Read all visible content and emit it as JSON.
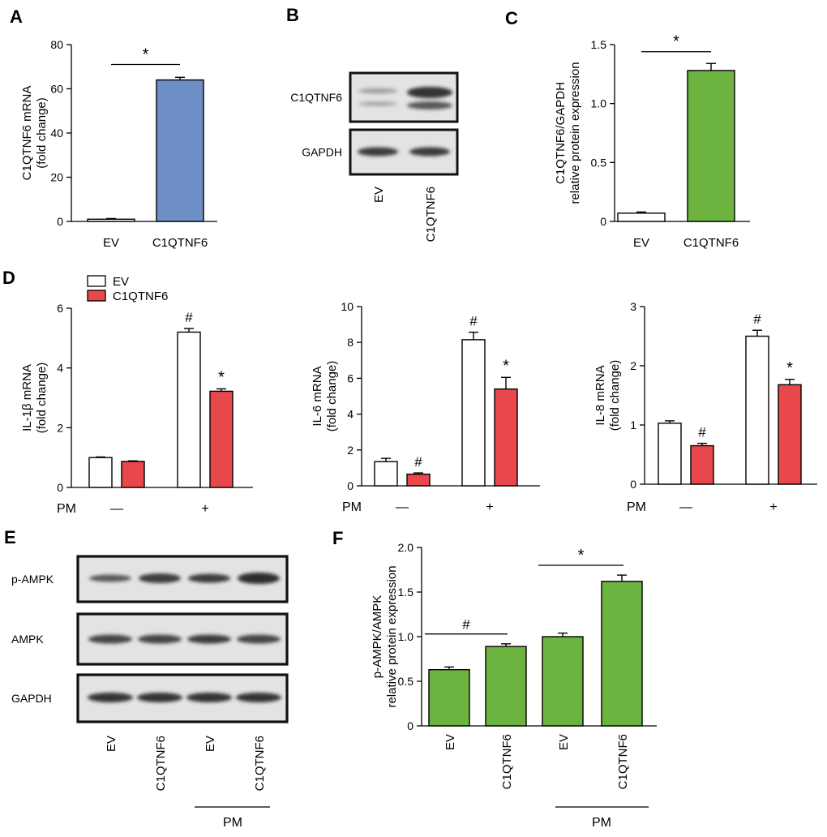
{
  "panels": {
    "A": "A",
    "B": "B",
    "C": "C",
    "D": "D",
    "E": "E",
    "F": "F"
  },
  "colors": {
    "blue": "#6d8fc5",
    "green": "#6db33f",
    "red": "#e8474b",
    "white": "#ffffff",
    "blot_bg": "#e3e3e3",
    "band": "#2a2a2a"
  },
  "blot_B": {
    "rows": [
      "C1QTNF6",
      "GAPDH"
    ],
    "lanes": [
      "EV",
      "C1QTNF6"
    ]
  },
  "blot_E": {
    "rows": [
      "p-AMPK",
      "AMPK",
      "GAPDH"
    ],
    "lanes": [
      "EV",
      "C1QTNF6",
      "EV",
      "C1QTNF6"
    ],
    "group_label": "PM"
  },
  "legend_D": [
    "EV",
    "C1QTNF6"
  ],
  "chart_data": [
    {
      "id": "A",
      "type": "bar",
      "ylabel": [
        "C1QTNF6 mRNA",
        "(fold change)"
      ],
      "ylim": [
        0,
        80
      ],
      "yticks": [
        0,
        20,
        40,
        60,
        80
      ],
      "categories": [
        "EV",
        "C1QTNF6"
      ],
      "values": [
        1,
        64
      ],
      "errors": [
        0.3,
        1.2
      ],
      "colors": [
        "white",
        "blue"
      ],
      "significance": [
        {
          "from": 0,
          "to": 1,
          "label": "*",
          "y": 71
        }
      ]
    },
    {
      "id": "C",
      "type": "bar",
      "ylabel": [
        "C1QTNF6/GAPDH",
        "relative protein expression"
      ],
      "ylim": [
        0,
        1.5
      ],
      "yticks": [
        "0",
        "0.5",
        "1.0",
        "1.5"
      ],
      "categories": [
        "EV",
        "C1QTNF6"
      ],
      "values": [
        0.07,
        1.28
      ],
      "errors": [
        0.01,
        0.06
      ],
      "colors": [
        "white",
        "green"
      ],
      "significance": [
        {
          "from": 0,
          "to": 1,
          "label": "*",
          "y": 1.44
        }
      ]
    },
    {
      "id": "D1",
      "type": "bar",
      "ylabel": [
        "IL-1β mRNA",
        "(fold change)"
      ],
      "ylim": [
        0,
        6
      ],
      "yticks": [
        0,
        2,
        4,
        6
      ],
      "groups": [
        "—",
        "+"
      ],
      "group_axis_label": "PM",
      "series": [
        {
          "name": "EV",
          "values": [
            1.0,
            5.2
          ],
          "errors": [
            0.02,
            0.12
          ]
        },
        {
          "name": "C1QTNF6",
          "values": [
            0.87,
            3.22
          ],
          "errors": [
            0.02,
            0.08
          ]
        }
      ],
      "marks": [
        {
          "group": 1,
          "series": 0,
          "label": "#"
        },
        {
          "group": 1,
          "series": 1,
          "label": "*"
        }
      ]
    },
    {
      "id": "D2",
      "type": "bar",
      "ylabel": [
        "IL-6 mRNA",
        "(fold change)"
      ],
      "ylim": [
        0,
        10
      ],
      "yticks": [
        0,
        2,
        4,
        6,
        8,
        10
      ],
      "groups": [
        "—",
        "+"
      ],
      "group_axis_label": "PM",
      "series": [
        {
          "name": "EV",
          "values": [
            1.35,
            8.15
          ],
          "errors": [
            0.18,
            0.42
          ]
        },
        {
          "name": "C1QTNF6",
          "values": [
            0.65,
            5.4
          ],
          "errors": [
            0.07,
            0.65
          ]
        }
      ],
      "marks": [
        {
          "group": 0,
          "series": 1,
          "label": "#"
        },
        {
          "group": 1,
          "series": 0,
          "label": "#"
        },
        {
          "group": 1,
          "series": 1,
          "label": "*"
        }
      ]
    },
    {
      "id": "D3",
      "type": "bar",
      "ylabel": [
        "IL-8 mRNA",
        "(fold change)"
      ],
      "ylim": [
        0,
        3
      ],
      "yticks": [
        0,
        1,
        2,
        3
      ],
      "groups": [
        "—",
        "+"
      ],
      "group_axis_label": "PM",
      "series": [
        {
          "name": "EV",
          "values": [
            1.03,
            2.5
          ],
          "errors": [
            0.04,
            0.1
          ]
        },
        {
          "name": "C1QTNF6",
          "values": [
            0.65,
            1.68
          ],
          "errors": [
            0.04,
            0.09
          ]
        }
      ],
      "marks": [
        {
          "group": 0,
          "series": 1,
          "label": "#"
        },
        {
          "group": 1,
          "series": 0,
          "label": "#"
        },
        {
          "group": 1,
          "series": 1,
          "label": "*"
        }
      ]
    },
    {
      "id": "F",
      "type": "bar",
      "ylabel": [
        "p-AMPK/AMPK",
        "relative protein expression"
      ],
      "ylim": [
        0,
        2.0
      ],
      "yticks": [
        "0",
        "0.5",
        "1.0",
        "1.5",
        "2.0"
      ],
      "categories": [
        "EV",
        "C1QTNF6",
        "EV",
        "C1QTNF6"
      ],
      "values": [
        0.63,
        0.89,
        1.0,
        1.62
      ],
      "errors": [
        0.03,
        0.03,
        0.04,
        0.07
      ],
      "group_label": "PM",
      "significance": [
        {
          "from": 0,
          "to": 1,
          "label": "#",
          "y": 1.03
        },
        {
          "from": 2,
          "to": 3,
          "label": "*",
          "y": 1.8
        }
      ]
    }
  ]
}
